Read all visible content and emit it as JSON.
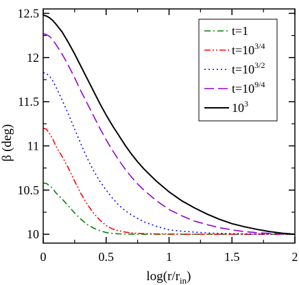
{
  "chart_data": {
    "type": "line",
    "xlabel": {
      "main": "log(r/r",
      "sub": "in",
      "close": ")"
    },
    "ylabel": "β (deg)",
    "xlim": [
      0,
      2
    ],
    "ylim": [
      9.9,
      12.55
    ],
    "xticks": [
      0,
      0.5,
      1,
      1.5,
      2
    ],
    "xtick_labels": [
      "0",
      "0.5",
      "1",
      "1.5",
      "2"
    ],
    "yticks": [
      10,
      10.5,
      11,
      11.5,
      12,
      12.5
    ],
    "ytick_labels": [
      "10",
      "10.5",
      "11",
      "11.5",
      "12",
      "12.5"
    ],
    "grid": false,
    "legend_position": "top-right",
    "x": [
      0,
      0.025,
      0.05,
      0.075,
      0.1,
      0.15,
      0.2,
      0.25,
      0.3,
      0.35,
      0.4,
      0.45,
      0.5,
      0.55,
      0.6,
      0.65,
      0.7,
      0.75,
      0.8,
      0.9,
      1.0,
      1.1,
      1.2,
      1.3,
      1.4,
      1.5,
      1.6,
      1.7,
      1.8,
      1.9,
      2.0
    ],
    "series": [
      {
        "name": {
          "base": "t=1",
          "sup": ""
        },
        "color": "#008000",
        "dash": "9,4,2,4",
        "values": [
          10.58,
          10.575,
          10.55,
          10.52,
          10.47,
          10.4,
          10.32,
          10.24,
          10.17,
          10.11,
          10.07,
          10.04,
          10.02,
          10.01,
          10.005,
          10.002,
          10.001,
          10.0,
          10.0,
          10.0,
          10.0,
          10.0,
          10.0,
          10.0,
          10.0,
          10.0,
          10.0,
          10.0,
          10.0,
          10.0,
          10.0
        ]
      },
      {
        "name": {
          "base": "t=10",
          "sup": "3/4"
        },
        "color": "#ff0000",
        "dash": "9,3,2,3,2,3",
        "values": [
          11.2,
          11.19,
          11.14,
          11.08,
          11.0,
          10.88,
          10.75,
          10.6,
          10.46,
          10.34,
          10.24,
          10.16,
          10.1,
          10.06,
          10.04,
          10.025,
          10.015,
          10.01,
          10.007,
          10.004,
          10.003,
          10.002,
          10.0,
          10.0,
          10.0,
          10.0,
          10.0,
          10.0,
          10.0,
          10.0,
          10.0
        ]
      },
      {
        "name": {
          "base": "t=10",
          "sup": "3/2"
        },
        "color": "#0000ff",
        "dash": "2,4",
        "values": [
          11.83,
          11.82,
          11.79,
          11.74,
          11.67,
          11.52,
          11.36,
          11.19,
          11.02,
          10.86,
          10.72,
          10.6,
          10.5,
          10.41,
          10.33,
          10.27,
          10.22,
          10.18,
          10.14,
          10.09,
          10.05,
          10.035,
          10.025,
          10.015,
          10.01,
          10.007,
          10.005,
          10.003,
          10.002,
          10.001,
          10.0
        ]
      },
      {
        "name": {
          "base": "t=10",
          "sup": "9/4"
        },
        "color": "#9400d3",
        "dash": "14,6",
        "values": [
          12.27,
          12.26,
          12.24,
          12.2,
          12.15,
          12.04,
          11.91,
          11.77,
          11.62,
          11.48,
          11.34,
          11.2,
          11.07,
          10.95,
          10.84,
          10.74,
          10.65,
          10.57,
          10.5,
          10.38,
          10.28,
          10.21,
          10.15,
          10.11,
          10.075,
          10.05,
          10.03,
          10.018,
          10.01,
          10.004,
          10.0
        ]
      },
      {
        "name": {
          "base": "10",
          "sup": "3"
        },
        "color": "#000000",
        "dash": "",
        "values": [
          12.48,
          12.47,
          12.45,
          12.42,
          12.38,
          12.29,
          12.17,
          12.04,
          11.9,
          11.76,
          11.62,
          11.48,
          11.35,
          11.23,
          11.12,
          11.01,
          10.91,
          10.82,
          10.74,
          10.6,
          10.48,
          10.38,
          10.3,
          10.23,
          10.17,
          10.12,
          10.085,
          10.055,
          10.03,
          10.012,
          10.0
        ]
      }
    ]
  }
}
